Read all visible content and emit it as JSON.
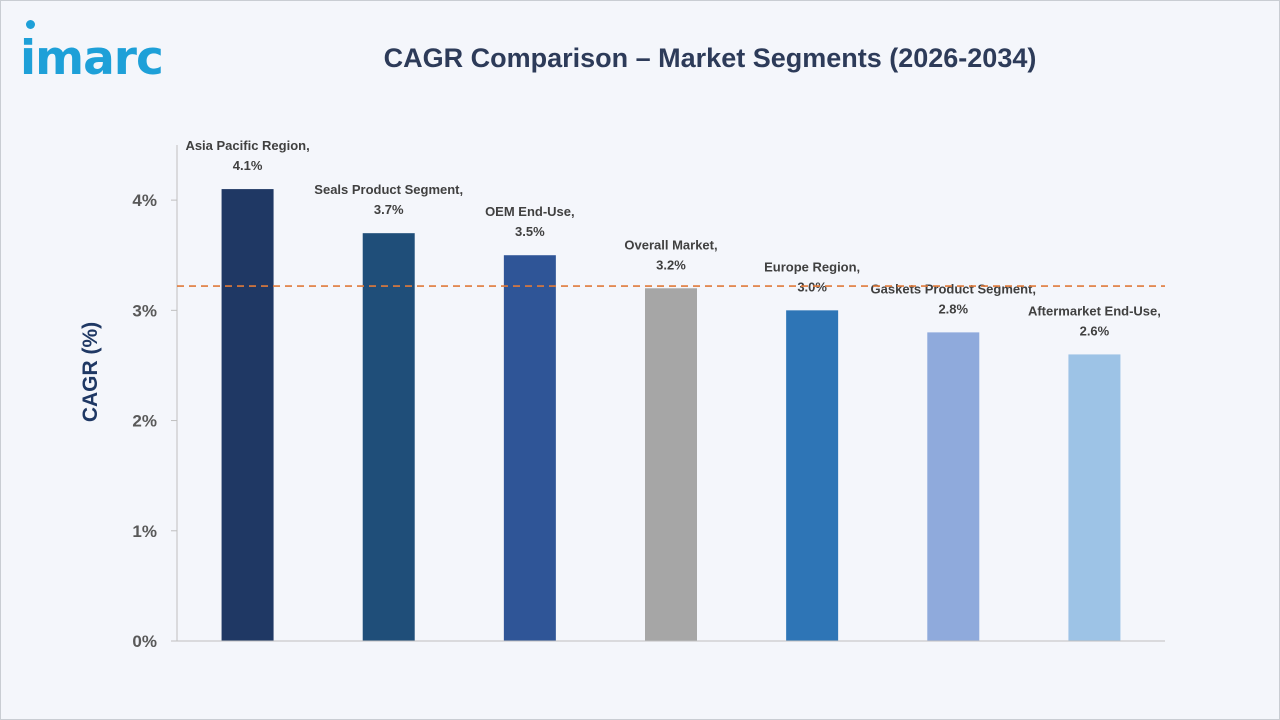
{
  "logo": {
    "text": "imarc",
    "accent": "#1ea0d8"
  },
  "chart_data": {
    "type": "bar",
    "title": "CAGR Comparison – Market Segments (2026-2034)",
    "xlabel": "",
    "ylabel": "CAGR (%)",
    "ylim": [
      0,
      4.5
    ],
    "yticks": [
      0,
      1,
      2,
      3,
      4
    ],
    "ytick_labels": [
      "0%",
      "1%",
      "2%",
      "3%",
      "4%"
    ],
    "grid": false,
    "legend": "none",
    "categories": [
      "Asia Pacific Region,",
      "Seals Product Segment,",
      "OEM End-Use,",
      "Overall Market,",
      "Europe Region,",
      "Gaskets Product Segment,",
      "Aftermarket End-Use,"
    ],
    "values": [
      4.1,
      3.7,
      3.5,
      3.2,
      3.0,
      2.8,
      2.6
    ],
    "value_labels": [
      "4.1%",
      "3.7%",
      "3.5%",
      "3.2%",
      "3.0%",
      "2.8%",
      "2.6%"
    ],
    "colors": [
      "#1f3864",
      "#1f4e79",
      "#2f5597",
      "#a6a6a6",
      "#2e75b6",
      "#8faadc",
      "#9dc3e6"
    ],
    "reference_line": {
      "value": 3.22,
      "color": "#e07a3a"
    }
  }
}
